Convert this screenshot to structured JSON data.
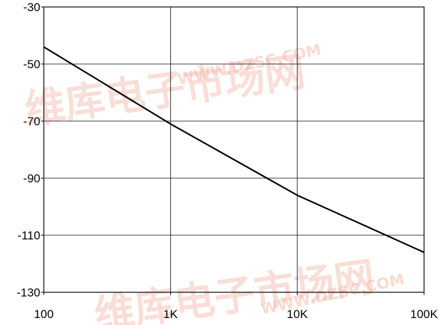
{
  "watermark": {
    "brand_text": "维库电子市场网",
    "url_text": "WWW.DZSC.COM",
    "color": "#f2b8a8"
  },
  "chart_data": {
    "type": "line",
    "title": "",
    "xlabel": "",
    "ylabel": "",
    "x_scale": "log",
    "xlim": [
      100,
      100000
    ],
    "ylim": [
      -130,
      -30
    ],
    "grid": true,
    "x_ticks": [
      {
        "value": 100,
        "label": "100"
      },
      {
        "value": 1000,
        "label": "1K"
      },
      {
        "value": 10000,
        "label": "10K"
      },
      {
        "value": 100000,
        "label": "100K"
      }
    ],
    "y_ticks": [
      {
        "value": -30,
        "label": "-30"
      },
      {
        "value": -50,
        "label": "-50"
      },
      {
        "value": -70,
        "label": "-70"
      },
      {
        "value": -90,
        "label": "-90"
      },
      {
        "value": -110,
        "label": "-110"
      },
      {
        "value": -130,
        "label": "-130"
      }
    ],
    "series": [
      {
        "color": "#000000",
        "x": [
          100,
          1000,
          10000,
          100000
        ],
        "y": [
          -44,
          -71,
          -96,
          -116
        ]
      }
    ]
  }
}
